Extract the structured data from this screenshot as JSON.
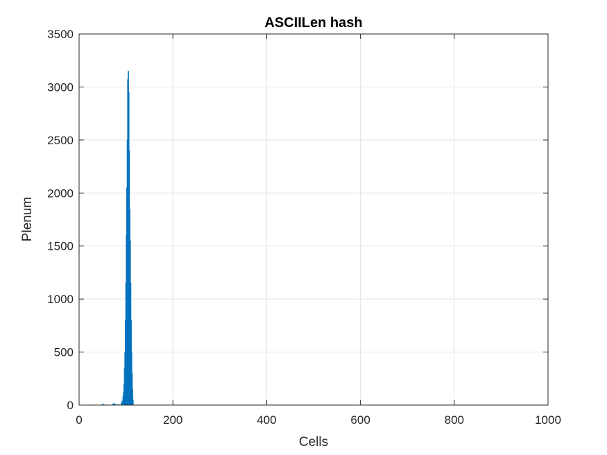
{
  "chart_data": {
    "type": "bar",
    "title": "ASCIILen hash",
    "xlabel": "Cells",
    "ylabel": "Plenum",
    "xlim": [
      0,
      1000
    ],
    "ylim": [
      0,
      3500
    ],
    "xticks": [
      0,
      200,
      400,
      600,
      800,
      1000
    ],
    "yticks": [
      0,
      500,
      1000,
      1500,
      2000,
      2500,
      3000,
      3500
    ],
    "grid": true,
    "bar_color": "#0072BD",
    "grid_color": "#e3e3e3",
    "x": [
      50,
      52,
      55,
      72,
      74,
      76,
      78,
      80,
      85,
      90,
      92,
      94,
      95,
      96,
      97,
      98,
      99,
      100,
      101,
      102,
      103,
      104,
      105,
      106,
      107,
      108,
      109,
      110,
      111,
      112,
      113,
      114,
      115
    ],
    "values": [
      10,
      5,
      3,
      8,
      15,
      10,
      5,
      6,
      5,
      20,
      40,
      80,
      120,
      200,
      350,
      500,
      800,
      1150,
      1600,
      2050,
      2500,
      3070,
      3150,
      2950,
      2400,
      1850,
      1550,
      1150,
      800,
      500,
      300,
      150,
      50
    ]
  }
}
